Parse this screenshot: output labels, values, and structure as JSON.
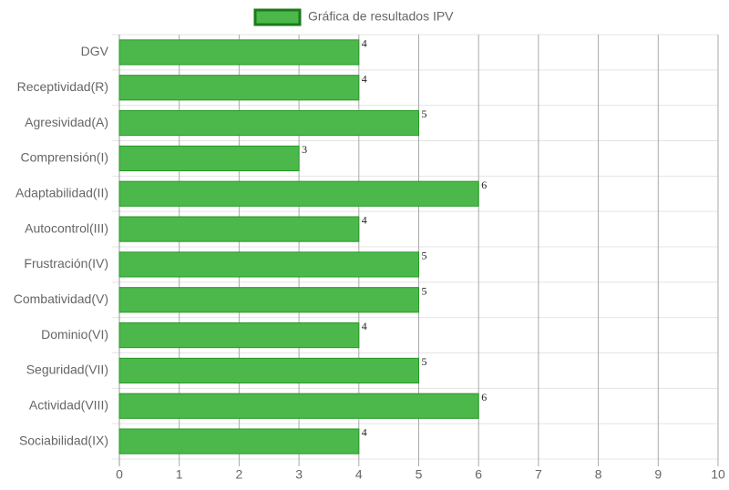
{
  "chart_data": {
    "type": "bar",
    "orientation": "horizontal",
    "categories": [
      "DGV",
      "Receptividad(R)",
      "Agresividad(A)",
      "Comprensión(I)",
      "Adaptabilidad(II)",
      "Autocontrol(III)",
      "Frustración(IV)",
      "Combatividad(V)",
      "Dominio(VI)",
      "Seguridad(VII)",
      "Actividad(VIII)",
      "Sociabilidad(IX)"
    ],
    "series": [
      {
        "name": "Gráfica de resultados IPV",
        "color": "#4cb84c",
        "border_color": "#239a23",
        "values": [
          4,
          4,
          5,
          3,
          6,
          4,
          5,
          5,
          4,
          5,
          6,
          4
        ]
      }
    ],
    "xlim": [
      0,
      10
    ],
    "xticks": [
      0,
      1,
      2,
      3,
      4,
      5,
      6,
      7,
      8,
      9,
      10
    ],
    "grid": true,
    "legend": "top",
    "data_labels": true
  }
}
